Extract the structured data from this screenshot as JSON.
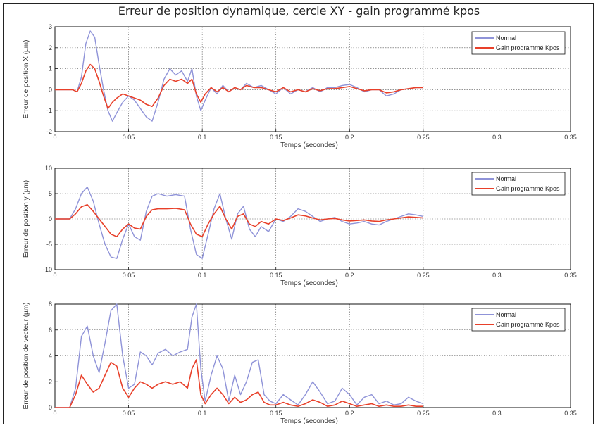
{
  "title": "Erreur de position dynamique, cercle XY - gain programmé kpos",
  "colors": {
    "normal": "#8f93d8",
    "kpos": "#e8402a",
    "grid": "#555555",
    "axis": "#111111"
  },
  "chart_data": [
    {
      "type": "line",
      "ylabel": "Erreur de position X (µm)",
      "xlabel": "Temps (secondes)",
      "xlim": [
        0,
        0.35
      ],
      "ylim": [
        -2,
        3
      ],
      "xticks": [
        0,
        0.05,
        0.1,
        0.15,
        0.2,
        0.25,
        0.3,
        0.35
      ],
      "xtick_labels": [
        "0",
        "0.05",
        "0.1",
        "0.15",
        "0.2",
        "0.25",
        "0.3",
        "0.35"
      ],
      "yticks": [
        -2,
        -1,
        0,
        1,
        2,
        3
      ],
      "ytick_labels": [
        "-2",
        "-1",
        "0",
        "1",
        "2",
        "3"
      ],
      "grid": true,
      "legend_position": "top-right",
      "series": [
        {
          "name": "Normal",
          "color": "#8f93d8",
          "x": [
            0,
            0.012,
            0.015,
            0.018,
            0.021,
            0.024,
            0.027,
            0.03,
            0.033,
            0.036,
            0.039,
            0.042,
            0.046,
            0.05,
            0.054,
            0.058,
            0.062,
            0.066,
            0.07,
            0.074,
            0.078,
            0.082,
            0.086,
            0.09,
            0.093,
            0.096,
            0.099,
            0.102,
            0.106,
            0.11,
            0.114,
            0.118,
            0.122,
            0.126,
            0.13,
            0.135,
            0.14,
            0.145,
            0.15,
            0.155,
            0.16,
            0.165,
            0.17,
            0.175,
            0.18,
            0.185,
            0.19,
            0.195,
            0.2,
            0.205,
            0.21,
            0.215,
            0.22,
            0.225,
            0.23,
            0.235,
            0.24,
            0.245,
            0.25
          ],
          "y": [
            0,
            0,
            -0.1,
            0.6,
            2.2,
            2.8,
            2.5,
            1.2,
            0,
            -1.0,
            -1.5,
            -1.1,
            -0.6,
            -0.3,
            -0.5,
            -0.9,
            -1.3,
            -1.5,
            -0.6,
            0.5,
            1.0,
            0.7,
            0.9,
            0.4,
            1.0,
            -0.3,
            -1.0,
            -0.5,
            0.1,
            -0.2,
            0.2,
            -0.1,
            0.1,
            0,
            0.3,
            0.1,
            0.2,
            0,
            -0.2,
            0.1,
            -0.2,
            0,
            -0.1,
            0.1,
            -0.1,
            0.1,
            0.1,
            0.2,
            0.25,
            0.1,
            -0.1,
            0,
            0,
            -0.3,
            -0.2,
            0,
            0.05,
            0.1,
            0.1
          ]
        },
        {
          "name": "Gain programmé Kpos",
          "color": "#e8402a",
          "x": [
            0,
            0.012,
            0.015,
            0.018,
            0.021,
            0.024,
            0.027,
            0.03,
            0.033,
            0.036,
            0.039,
            0.042,
            0.046,
            0.05,
            0.054,
            0.058,
            0.062,
            0.066,
            0.07,
            0.074,
            0.078,
            0.082,
            0.086,
            0.09,
            0.093,
            0.096,
            0.099,
            0.102,
            0.106,
            0.11,
            0.114,
            0.118,
            0.122,
            0.126,
            0.13,
            0.135,
            0.14,
            0.145,
            0.15,
            0.155,
            0.16,
            0.165,
            0.17,
            0.175,
            0.18,
            0.185,
            0.19,
            0.195,
            0.2,
            0.205,
            0.21,
            0.215,
            0.22,
            0.225,
            0.23,
            0.235,
            0.24,
            0.245,
            0.25
          ],
          "y": [
            0,
            0,
            -0.1,
            0.3,
            0.9,
            1.2,
            1.0,
            0.4,
            -0.3,
            -0.9,
            -0.6,
            -0.4,
            -0.2,
            -0.3,
            -0.4,
            -0.5,
            -0.7,
            -0.8,
            -0.4,
            0.2,
            0.5,
            0.4,
            0.5,
            0.3,
            0.5,
            -0.2,
            -0.6,
            -0.2,
            0.1,
            -0.1,
            0.1,
            -0.1,
            0.1,
            0,
            0.2,
            0.1,
            0.1,
            0,
            -0.1,
            0.1,
            -0.1,
            0,
            -0.1,
            0.05,
            -0.05,
            0.05,
            0.05,
            0.1,
            0.15,
            0.05,
            -0.05,
            0,
            0,
            -0.15,
            -0.1,
            0,
            0.05,
            0.1,
            0.1
          ]
        }
      ]
    },
    {
      "type": "line",
      "ylabel": "Erreur de position y (µm)",
      "xlabel": "Temps (secondes)",
      "xlim": [
        0,
        0.35
      ],
      "ylim": [
        -10,
        10
      ],
      "xticks": [
        0,
        0.05,
        0.1,
        0.15,
        0.2,
        0.25,
        0.3,
        0.35
      ],
      "xtick_labels": [
        "0",
        "0.05",
        "0.1",
        "0.15",
        "0.2",
        "0.25",
        "0.3",
        "0.35"
      ],
      "yticks": [
        -10,
        -5,
        0,
        5,
        10
      ],
      "ytick_labels": [
        "-10",
        "-5",
        "0",
        "5",
        "10"
      ],
      "grid": true,
      "legend_position": "top-right",
      "series": [
        {
          "name": "Normal",
          "color": "#8f93d8",
          "x": [
            0,
            0.01,
            0.014,
            0.018,
            0.022,
            0.026,
            0.03,
            0.034,
            0.038,
            0.042,
            0.046,
            0.05,
            0.054,
            0.058,
            0.062,
            0.066,
            0.07,
            0.076,
            0.082,
            0.088,
            0.092,
            0.096,
            0.1,
            0.104,
            0.108,
            0.112,
            0.116,
            0.12,
            0.124,
            0.128,
            0.132,
            0.136,
            0.14,
            0.145,
            0.15,
            0.155,
            0.16,
            0.165,
            0.17,
            0.175,
            0.18,
            0.185,
            0.19,
            0.195,
            0.2,
            0.205,
            0.21,
            0.215,
            0.22,
            0.225,
            0.23,
            0.235,
            0.24,
            0.245,
            0.25
          ],
          "y": [
            0,
            0,
            2,
            5,
            6.3,
            3.5,
            -1,
            -5,
            -7.5,
            -7.8,
            -4,
            -1,
            -3.5,
            -4.2,
            1.5,
            4.5,
            5,
            4.5,
            4.8,
            4.5,
            -2,
            -7,
            -7.8,
            -3,
            2,
            5,
            0,
            -4,
            1,
            2.5,
            -2,
            -3.5,
            -1.5,
            -2.5,
            0,
            -0.5,
            0.5,
            2,
            1.5,
            0.5,
            -0.5,
            0,
            0.3,
            -0.5,
            -1,
            -0.8,
            -0.5,
            -1,
            -1.2,
            -0.5,
            0,
            0.5,
            1,
            0.8,
            0.5
          ]
        },
        {
          "name": "Gain programmé Kpos",
          "color": "#e8402a",
          "x": [
            0,
            0.01,
            0.014,
            0.018,
            0.022,
            0.026,
            0.03,
            0.034,
            0.038,
            0.042,
            0.046,
            0.05,
            0.054,
            0.058,
            0.062,
            0.066,
            0.07,
            0.076,
            0.082,
            0.088,
            0.092,
            0.096,
            0.1,
            0.104,
            0.108,
            0.112,
            0.116,
            0.12,
            0.124,
            0.128,
            0.132,
            0.136,
            0.14,
            0.145,
            0.15,
            0.155,
            0.16,
            0.165,
            0.17,
            0.175,
            0.18,
            0.185,
            0.19,
            0.195,
            0.2,
            0.205,
            0.21,
            0.215,
            0.22,
            0.225,
            0.23,
            0.235,
            0.24,
            0.245,
            0.25
          ],
          "y": [
            0,
            0,
            1,
            2.4,
            2.8,
            1.5,
            0,
            -1.5,
            -3,
            -3.5,
            -2,
            -1,
            -1.8,
            -2,
            0.5,
            1.8,
            2,
            2,
            2.1,
            1.8,
            -1,
            -3,
            -3.5,
            -1,
            1,
            2.5,
            0,
            -2,
            0.5,
            1,
            -1,
            -1.5,
            -0.5,
            -1,
            0,
            -0.3,
            0.2,
            0.8,
            0.6,
            0.2,
            -0.2,
            0,
            0.1,
            -0.2,
            -0.4,
            -0.3,
            -0.2,
            -0.4,
            -0.5,
            -0.2,
            0,
            0.2,
            0.4,
            0.3,
            0.2
          ]
        }
      ]
    },
    {
      "type": "line",
      "ylabel": "Erreur de position de vecteur (µm)",
      "xlabel": "Temps (secondes)",
      "xlim": [
        0,
        0.35
      ],
      "ylim": [
        0,
        8
      ],
      "xticks": [
        0,
        0.05,
        0.1,
        0.15,
        0.2,
        0.25,
        0.3,
        0.35
      ],
      "xtick_labels": [
        "0",
        "0.05",
        "0.1",
        "0.15",
        "0.2",
        "0.25",
        "0.3",
        "0.35"
      ],
      "yticks": [
        0,
        2,
        4,
        6,
        8
      ],
      "ytick_labels": [
        "0",
        "2",
        "4",
        "6",
        "8"
      ],
      "grid": true,
      "legend_position": "top-right",
      "series": [
        {
          "name": "Normal",
          "color": "#8f93d8",
          "x": [
            0,
            0.01,
            0.014,
            0.018,
            0.022,
            0.026,
            0.03,
            0.034,
            0.038,
            0.042,
            0.046,
            0.05,
            0.054,
            0.058,
            0.062,
            0.066,
            0.07,
            0.075,
            0.08,
            0.085,
            0.09,
            0.093,
            0.096,
            0.099,
            0.102,
            0.106,
            0.11,
            0.114,
            0.118,
            0.122,
            0.126,
            0.13,
            0.134,
            0.138,
            0.142,
            0.146,
            0.15,
            0.155,
            0.16,
            0.165,
            0.17,
            0.175,
            0.18,
            0.185,
            0.19,
            0.195,
            0.2,
            0.205,
            0.21,
            0.215,
            0.22,
            0.225,
            0.23,
            0.235,
            0.24,
            0.245,
            0.25
          ],
          "y": [
            0,
            0,
            1.5,
            5.5,
            6.3,
            4,
            2.7,
            5,
            7.5,
            8,
            4,
            1.5,
            1.8,
            4.3,
            4,
            3.3,
            4.2,
            4.5,
            4,
            4.3,
            4.5,
            7,
            8,
            3,
            0.5,
            2.5,
            4,
            3,
            0.5,
            2.5,
            1,
            2,
            3.5,
            3.7,
            1,
            0.5,
            0.3,
            1,
            0.6,
            0.2,
            1,
            2,
            1.2,
            0.3,
            0.5,
            1.5,
            1,
            0.2,
            0.8,
            1,
            0.3,
            0.5,
            0.2,
            0.3,
            0.8,
            0.5,
            0.3
          ]
        },
        {
          "name": "Gain programmé Kpos",
          "color": "#e8402a",
          "x": [
            0,
            0.01,
            0.014,
            0.018,
            0.022,
            0.026,
            0.03,
            0.034,
            0.038,
            0.042,
            0.046,
            0.05,
            0.054,
            0.058,
            0.062,
            0.066,
            0.07,
            0.075,
            0.08,
            0.085,
            0.09,
            0.093,
            0.096,
            0.099,
            0.102,
            0.106,
            0.11,
            0.114,
            0.118,
            0.122,
            0.126,
            0.13,
            0.134,
            0.138,
            0.142,
            0.146,
            0.15,
            0.155,
            0.16,
            0.165,
            0.17,
            0.175,
            0.18,
            0.185,
            0.19,
            0.195,
            0.2,
            0.205,
            0.21,
            0.215,
            0.22,
            0.225,
            0.23,
            0.235,
            0.24,
            0.245,
            0.25
          ],
          "y": [
            0,
            0,
            1,
            2.5,
            1.8,
            1.2,
            1.5,
            2.5,
            3.5,
            3.2,
            1.5,
            0.8,
            1.5,
            2,
            1.8,
            1.5,
            1.8,
            2,
            1.8,
            2,
            1.5,
            3,
            3.7,
            1,
            0.3,
            1,
            1.5,
            1,
            0.3,
            0.8,
            0.4,
            0.6,
            1,
            1.2,
            0.4,
            0.2,
            0.2,
            0.4,
            0.2,
            0.1,
            0.3,
            0.6,
            0.4,
            0.1,
            0.2,
            0.5,
            0.3,
            0.1,
            0.2,
            0.3,
            0.1,
            0.2,
            0.1,
            0.1,
            0.2,
            0.1,
            0.1
          ]
        }
      ]
    }
  ]
}
